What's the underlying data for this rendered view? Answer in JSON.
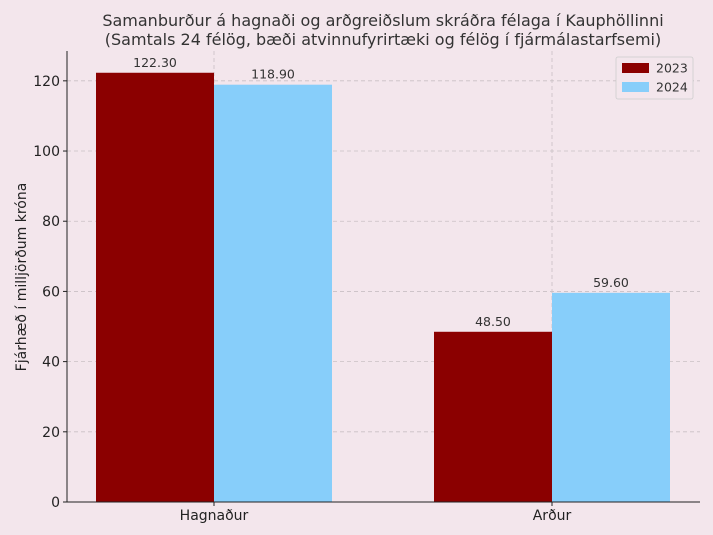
{
  "chart_data": {
    "type": "bar",
    "title": "Samanburður á hagnaði og arðgreiðslum skráðra félaga í Kauphöllinni",
    "subtitle": "(Samtals 24 félög, bæði atvinnufyrirtæki og félög í fjármálastarfsemi)",
    "xlabel": "",
    "ylabel": "Fjárhæð í milljörðum króna",
    "categories": [
      "Hagnaður",
      "Arður"
    ],
    "series": [
      {
        "name": "2023",
        "values": [
          122.3,
          48.5
        ],
        "color": "#8b0000"
      },
      {
        "name": "2024",
        "values": [
          118.9,
          59.6
        ],
        "color": "#87cefa"
      }
    ],
    "data_labels": [
      [
        "122.30",
        "48.50"
      ],
      [
        "118.90",
        "59.60"
      ]
    ],
    "ylim": [
      0,
      128.5
    ],
    "yticks": [
      0,
      20,
      40,
      60,
      80,
      100,
      120
    ],
    "grid": true,
    "legend_position": "top-right"
  }
}
